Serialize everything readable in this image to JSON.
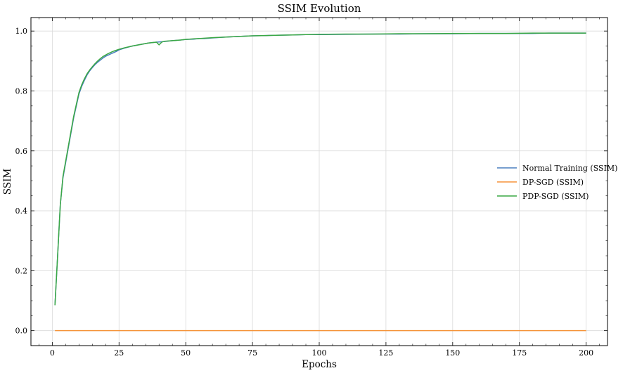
{
  "chart_data": {
    "type": "line",
    "title": "SSIM Evolution",
    "xlabel": "Epochs",
    "ylabel": "SSIM",
    "xlim": [
      -8,
      208
    ],
    "ylim": [
      -0.05,
      1.045
    ],
    "xticks": [
      0,
      25,
      50,
      75,
      100,
      125,
      150,
      175,
      200
    ],
    "yticks": [
      0.0,
      0.2,
      0.4,
      0.6,
      0.8,
      1.0
    ],
    "xtick_labels": [
      "0",
      "25",
      "50",
      "75",
      "100",
      "125",
      "150",
      "175",
      "200"
    ],
    "ytick_labels": [
      "0.0",
      "0.2",
      "0.4",
      "0.6",
      "0.8",
      "1.0"
    ],
    "grid": true,
    "legend_position": "center-right",
    "series": [
      {
        "name": "Normal Training (SSIM)",
        "color": "#4a7fbf",
        "x": [
          1,
          2,
          3,
          4,
          5,
          6,
          7,
          8,
          9,
          10,
          11,
          12,
          13,
          14,
          15,
          16,
          17,
          18,
          19,
          20,
          21,
          22,
          23,
          24,
          25,
          27,
          30,
          33,
          36,
          39,
          42,
          45,
          48,
          50,
          53,
          55,
          57,
          60,
          65,
          70,
          75,
          80,
          85,
          90,
          95,
          100,
          110,
          120,
          127,
          130,
          140,
          150,
          160,
          170,
          180,
          186,
          190,
          200
        ],
        "y": [
          0.085,
          0.25,
          0.42,
          0.51,
          0.56,
          0.61,
          0.66,
          0.71,
          0.75,
          0.79,
          0.815,
          0.835,
          0.853,
          0.867,
          0.878,
          0.888,
          0.896,
          0.903,
          0.91,
          0.916,
          0.92,
          0.924,
          0.928,
          0.932,
          0.937,
          0.943,
          0.95,
          0.955,
          0.96,
          0.963,
          0.965,
          0.968,
          0.97,
          0.972,
          0.973,
          0.975,
          0.975,
          0.977,
          0.98,
          0.982,
          0.984,
          0.985,
          0.986,
          0.987,
          0.988,
          0.988,
          0.989,
          0.99,
          0.99,
          0.99,
          0.991,
          0.991,
          0.992,
          0.992,
          0.992,
          0.993,
          0.993,
          0.993
        ]
      },
      {
        "name": "DP-SGD (SSIM)",
        "color": "#f5943a",
        "x": [
          1,
          200
        ],
        "y": [
          0.0,
          0.0
        ]
      },
      {
        "name": "PDP-SGD (SSIM)",
        "color": "#3aa844",
        "x": [
          1,
          2,
          3,
          4,
          5,
          6,
          7,
          8,
          9,
          10,
          11,
          12,
          13,
          14,
          15,
          16,
          17,
          18,
          19,
          20,
          21,
          22,
          23,
          24,
          25,
          27,
          30,
          33,
          36,
          39,
          40,
          41,
          42,
          45,
          48,
          50,
          53,
          55,
          57,
          60,
          65,
          70,
          75,
          80,
          85,
          90,
          95,
          100,
          110,
          120,
          130,
          140,
          150,
          160,
          170,
          180,
          190,
          200
        ],
        "y": [
          0.085,
          0.25,
          0.42,
          0.515,
          0.565,
          0.615,
          0.665,
          0.715,
          0.755,
          0.795,
          0.82,
          0.84,
          0.857,
          0.87,
          0.881,
          0.891,
          0.9,
          0.908,
          0.915,
          0.92,
          0.925,
          0.929,
          0.933,
          0.936,
          0.939,
          0.944,
          0.95,
          0.955,
          0.96,
          0.963,
          0.954,
          0.963,
          0.966,
          0.968,
          0.97,
          0.972,
          0.974,
          0.975,
          0.976,
          0.978,
          0.98,
          0.982,
          0.984,
          0.985,
          0.986,
          0.987,
          0.988,
          0.989,
          0.99,
          0.99,
          0.991,
          0.991,
          0.992,
          0.992,
          0.992,
          0.993,
          0.993,
          0.993
        ]
      }
    ]
  }
}
